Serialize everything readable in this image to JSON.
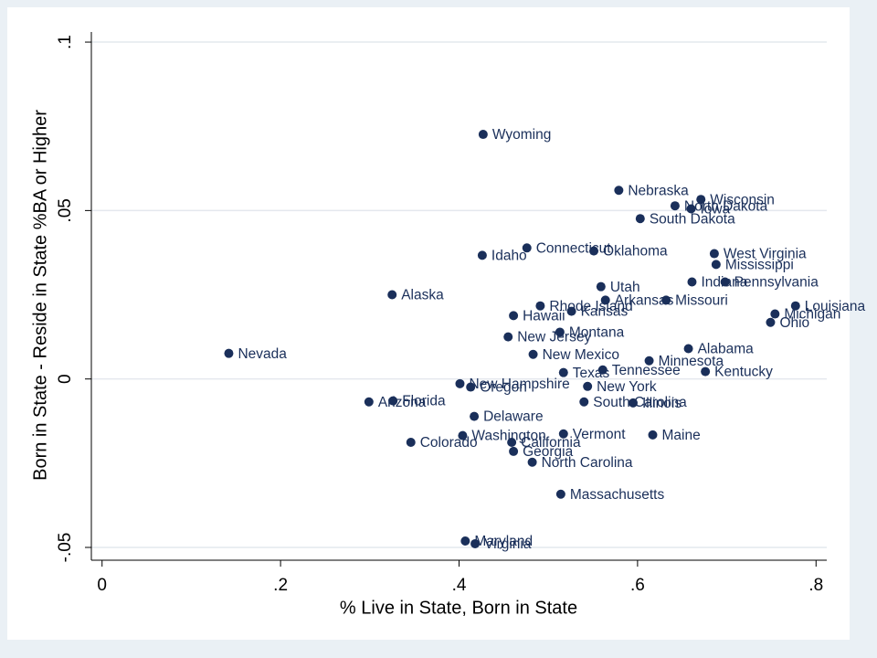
{
  "chart_data": {
    "type": "scatter",
    "xlabel": "% Live in State, Born in State",
    "ylabel": "Born in State - Reside in State %BA or Higher",
    "color": "#1a2f5a",
    "grid": true,
    "xlim": [
      -0.012,
      0.812
    ],
    "ylim": [
      -0.0538,
      0.103
    ],
    "xticks": [
      {
        "value": 0,
        "label": "0"
      },
      {
        "value": 0.2,
        "label": ".2"
      },
      {
        "value": 0.4,
        "label": ".4"
      },
      {
        "value": 0.6,
        "label": ".6"
      },
      {
        "value": 0.8,
        "label": ".8"
      }
    ],
    "yticks": [
      {
        "value": -0.05,
        "label": "-.05"
      },
      0,
      {
        "value": 0.05,
        "label": ".05"
      },
      {
        "value": 0.1,
        "label": ".1"
      }
    ],
    "point_labels": [
      "Wyoming",
      "Nebraska",
      "Wisconsin",
      "North Dakota",
      "Iowa",
      "South Dakota",
      "Connecticut",
      "Oklahoma",
      "Idaho",
      "West Virginia",
      "Mississippi",
      "Indiana",
      "Pennsylvania",
      "Utah",
      "Alaska",
      "Arkansas",
      "Missouri",
      "Rhode Island",
      "Kansas",
      "Louisiana",
      "Hawaii",
      "Michigan",
      "Ohio",
      "Montana",
      "New Jersey",
      "Alabama",
      "Nevada",
      "New Mexico",
      "Minnesota",
      "Texas",
      "Tennessee",
      "Kentucky",
      "New Hampshire",
      "New York",
      "Oregon",
      "Arizona",
      "Florida",
      "South Carolina",
      "Illinois",
      "Delaware",
      "Washington",
      "Vermont",
      "Maine",
      "California",
      "Colorado",
      "Georgia",
      "North Carolina",
      "Massachusetts",
      "Maryland",
      "Virginia"
    ],
    "x": [
      0.427,
      0.579,
      0.671,
      0.642,
      0.66,
      0.603,
      0.476,
      0.551,
      0.426,
      0.686,
      0.688,
      0.661,
      0.698,
      0.559,
      0.325,
      0.564,
      0.632,
      0.491,
      0.526,
      0.777,
      0.461,
      0.754,
      0.749,
      0.513,
      0.455,
      0.657,
      0.142,
      0.483,
      0.613,
      0.517,
      0.561,
      0.676,
      0.401,
      0.544,
      0.413,
      0.299,
      0.326,
      0.54,
      0.595,
      0.417,
      0.404,
      0.517,
      0.617,
      0.459,
      0.346,
      0.461,
      0.482,
      0.514,
      0.407,
      0.418
    ],
    "values": [
      0.0726,
      0.056,
      0.0533,
      0.0514,
      0.0505,
      0.0476,
      0.0389,
      0.038,
      0.0367,
      0.0372,
      0.034,
      0.0288,
      0.0288,
      0.0274,
      0.025,
      0.0234,
      0.0234,
      0.0217,
      0.0201,
      0.0217,
      0.0188,
      0.0193,
      0.0168,
      0.0139,
      0.0125,
      0.009,
      0.0076,
      0.0073,
      0.0054,
      0.0019,
      0.0027,
      0.0022,
      -0.0014,
      -0.0022,
      -0.0024,
      -0.0068,
      -0.0065,
      -0.0068,
      -0.0071,
      -0.0111,
      -0.0168,
      -0.0163,
      -0.0166,
      -0.0188,
      -0.0188,
      -0.0215,
      -0.0247,
      -0.0342,
      -0.0481,
      -0.0489
    ]
  }
}
